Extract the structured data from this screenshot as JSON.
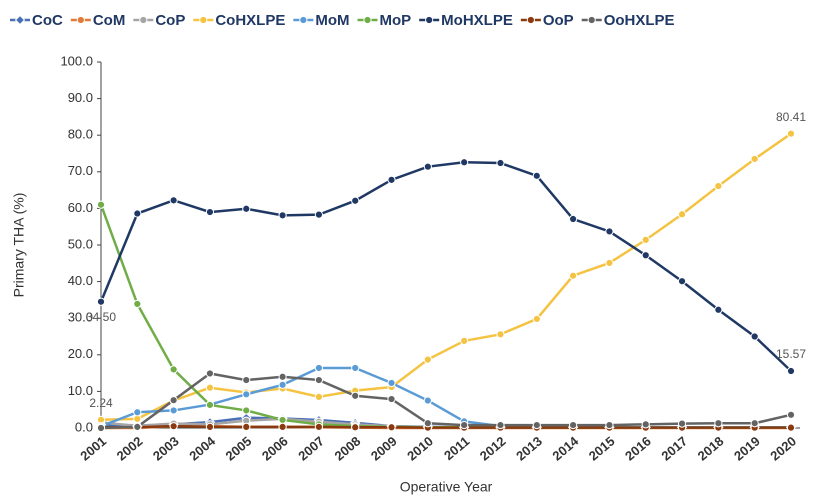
{
  "chart_data": {
    "type": "line",
    "y_label": "Primary THA (%)",
    "x_label": "Operative Year",
    "categories": [
      "2001",
      "2002",
      "2003",
      "2004",
      "2005",
      "2006",
      "2007",
      "2008",
      "2009",
      "2010",
      "2011",
      "2012",
      "2013",
      "2014",
      "2015",
      "2016",
      "2017",
      "2018",
      "2019",
      "2020"
    ],
    "ylim": [
      0,
      100
    ],
    "yticks": [
      {
        "value": 0,
        "label": "0.0"
      },
      {
        "value": 10,
        "label": "10.0"
      },
      {
        "value": 20,
        "label": "20.0"
      },
      {
        "value": 30,
        "label": "30.0"
      },
      {
        "value": 40,
        "label": "40.0"
      },
      {
        "value": 50,
        "label": "50.0"
      },
      {
        "value": 60,
        "label": "60.0"
      },
      {
        "value": 70,
        "label": "70.0"
      },
      {
        "value": 80,
        "label": "80.0"
      },
      {
        "value": 90,
        "label": "90.0"
      },
      {
        "value": 100,
        "label": "100.0"
      }
    ],
    "series": [
      {
        "name": "CoC",
        "color": "#4a6fb5",
        "marker": "diamond",
        "values": [
          1.0,
          0.5,
          1.0,
          1.6,
          2.8,
          2.6,
          2.2,
          1.4,
          0.5,
          0.3,
          0.2,
          0.2,
          0.2,
          0.2,
          0.2,
          0.2,
          0.2,
          0.2,
          0.2,
          0.2
        ]
      },
      {
        "name": "CoM",
        "color": "#e07b39",
        "values": [
          0.0,
          0.0,
          0.5,
          0.5,
          0.3,
          0.3,
          0.2,
          0.1,
          0.0,
          0.0,
          0.0,
          0.0,
          0.0,
          0.0,
          0.0,
          0.0,
          0.0,
          0.0,
          0.0,
          0.0
        ]
      },
      {
        "name": "CoP",
        "color": "#a5a5a5",
        "values": [
          1.5,
          0.6,
          1.2,
          1.0,
          2.0,
          2.5,
          1.7,
          1.0,
          0.5,
          0.2,
          0.1,
          0.1,
          0.1,
          0.1,
          0.1,
          0.1,
          0.1,
          0.1,
          0.1,
          0.1
        ]
      },
      {
        "name": "CoHXLPE",
        "color": "#f5c342",
        "values": [
          2.24,
          2.5,
          7.5,
          11.0,
          9.7,
          10.8,
          8.5,
          10.2,
          11.2,
          18.7,
          23.8,
          25.6,
          29.8,
          41.6,
          45.1,
          51.4,
          58.4,
          66.1,
          73.5,
          80.41
        ],
        "value_labels": [
          "2.24",
          null,
          null,
          null,
          null,
          null,
          null,
          null,
          null,
          null,
          null,
          null,
          null,
          null,
          null,
          null,
          null,
          null,
          null,
          "80.41"
        ]
      },
      {
        "name": "MoM",
        "color": "#5b9bd5",
        "values": [
          0.5,
          4.3,
          4.8,
          6.4,
          9.2,
          11.8,
          16.4,
          16.4,
          12.3,
          7.5,
          1.8,
          0.5,
          0.3,
          0.2,
          0.2,
          0.2,
          0.2,
          0.2,
          0.2,
          0.2
        ]
      },
      {
        "name": "MoP",
        "color": "#70ad47",
        "values": [
          61.0,
          33.9,
          16.0,
          6.3,
          4.8,
          2.2,
          1.0,
          0.5,
          0.3,
          0.2,
          0.2,
          0.2,
          0.1,
          0.1,
          0.1,
          0.1,
          0.1,
          0.1,
          0.1,
          0.1
        ]
      },
      {
        "name": "MoHXLPE",
        "color": "#1f3864",
        "values": [
          34.5,
          58.6,
          62.2,
          59.0,
          59.9,
          58.1,
          58.3,
          62.1,
          67.8,
          71.4,
          72.6,
          72.4,
          68.9,
          57.1,
          53.7,
          47.2,
          40.1,
          32.3,
          25.0,
          15.57
        ],
        "value_labels": [
          "34.50",
          null,
          null,
          null,
          null,
          null,
          null,
          null,
          null,
          null,
          null,
          null,
          null,
          null,
          null,
          null,
          null,
          null,
          null,
          "15.57"
        ]
      },
      {
        "name": "OoP",
        "color": "#8b3a0f",
        "values": [
          0.2,
          0.2,
          0.5,
          0.3,
          0.3,
          0.3,
          0.3,
          0.2,
          0.2,
          0.1,
          0.1,
          0.1,
          0.1,
          0.1,
          0.1,
          0.1,
          0.1,
          0.1,
          0.1,
          0.1
        ]
      },
      {
        "name": "OoHXLPE",
        "color": "#636363",
        "values": [
          0.0,
          0.3,
          7.6,
          14.9,
          13.1,
          14.0,
          13.1,
          8.8,
          7.9,
          1.3,
          0.8,
          0.8,
          0.8,
          0.8,
          0.8,
          1.0,
          1.2,
          1.3,
          1.3,
          3.6
        ]
      }
    ]
  }
}
